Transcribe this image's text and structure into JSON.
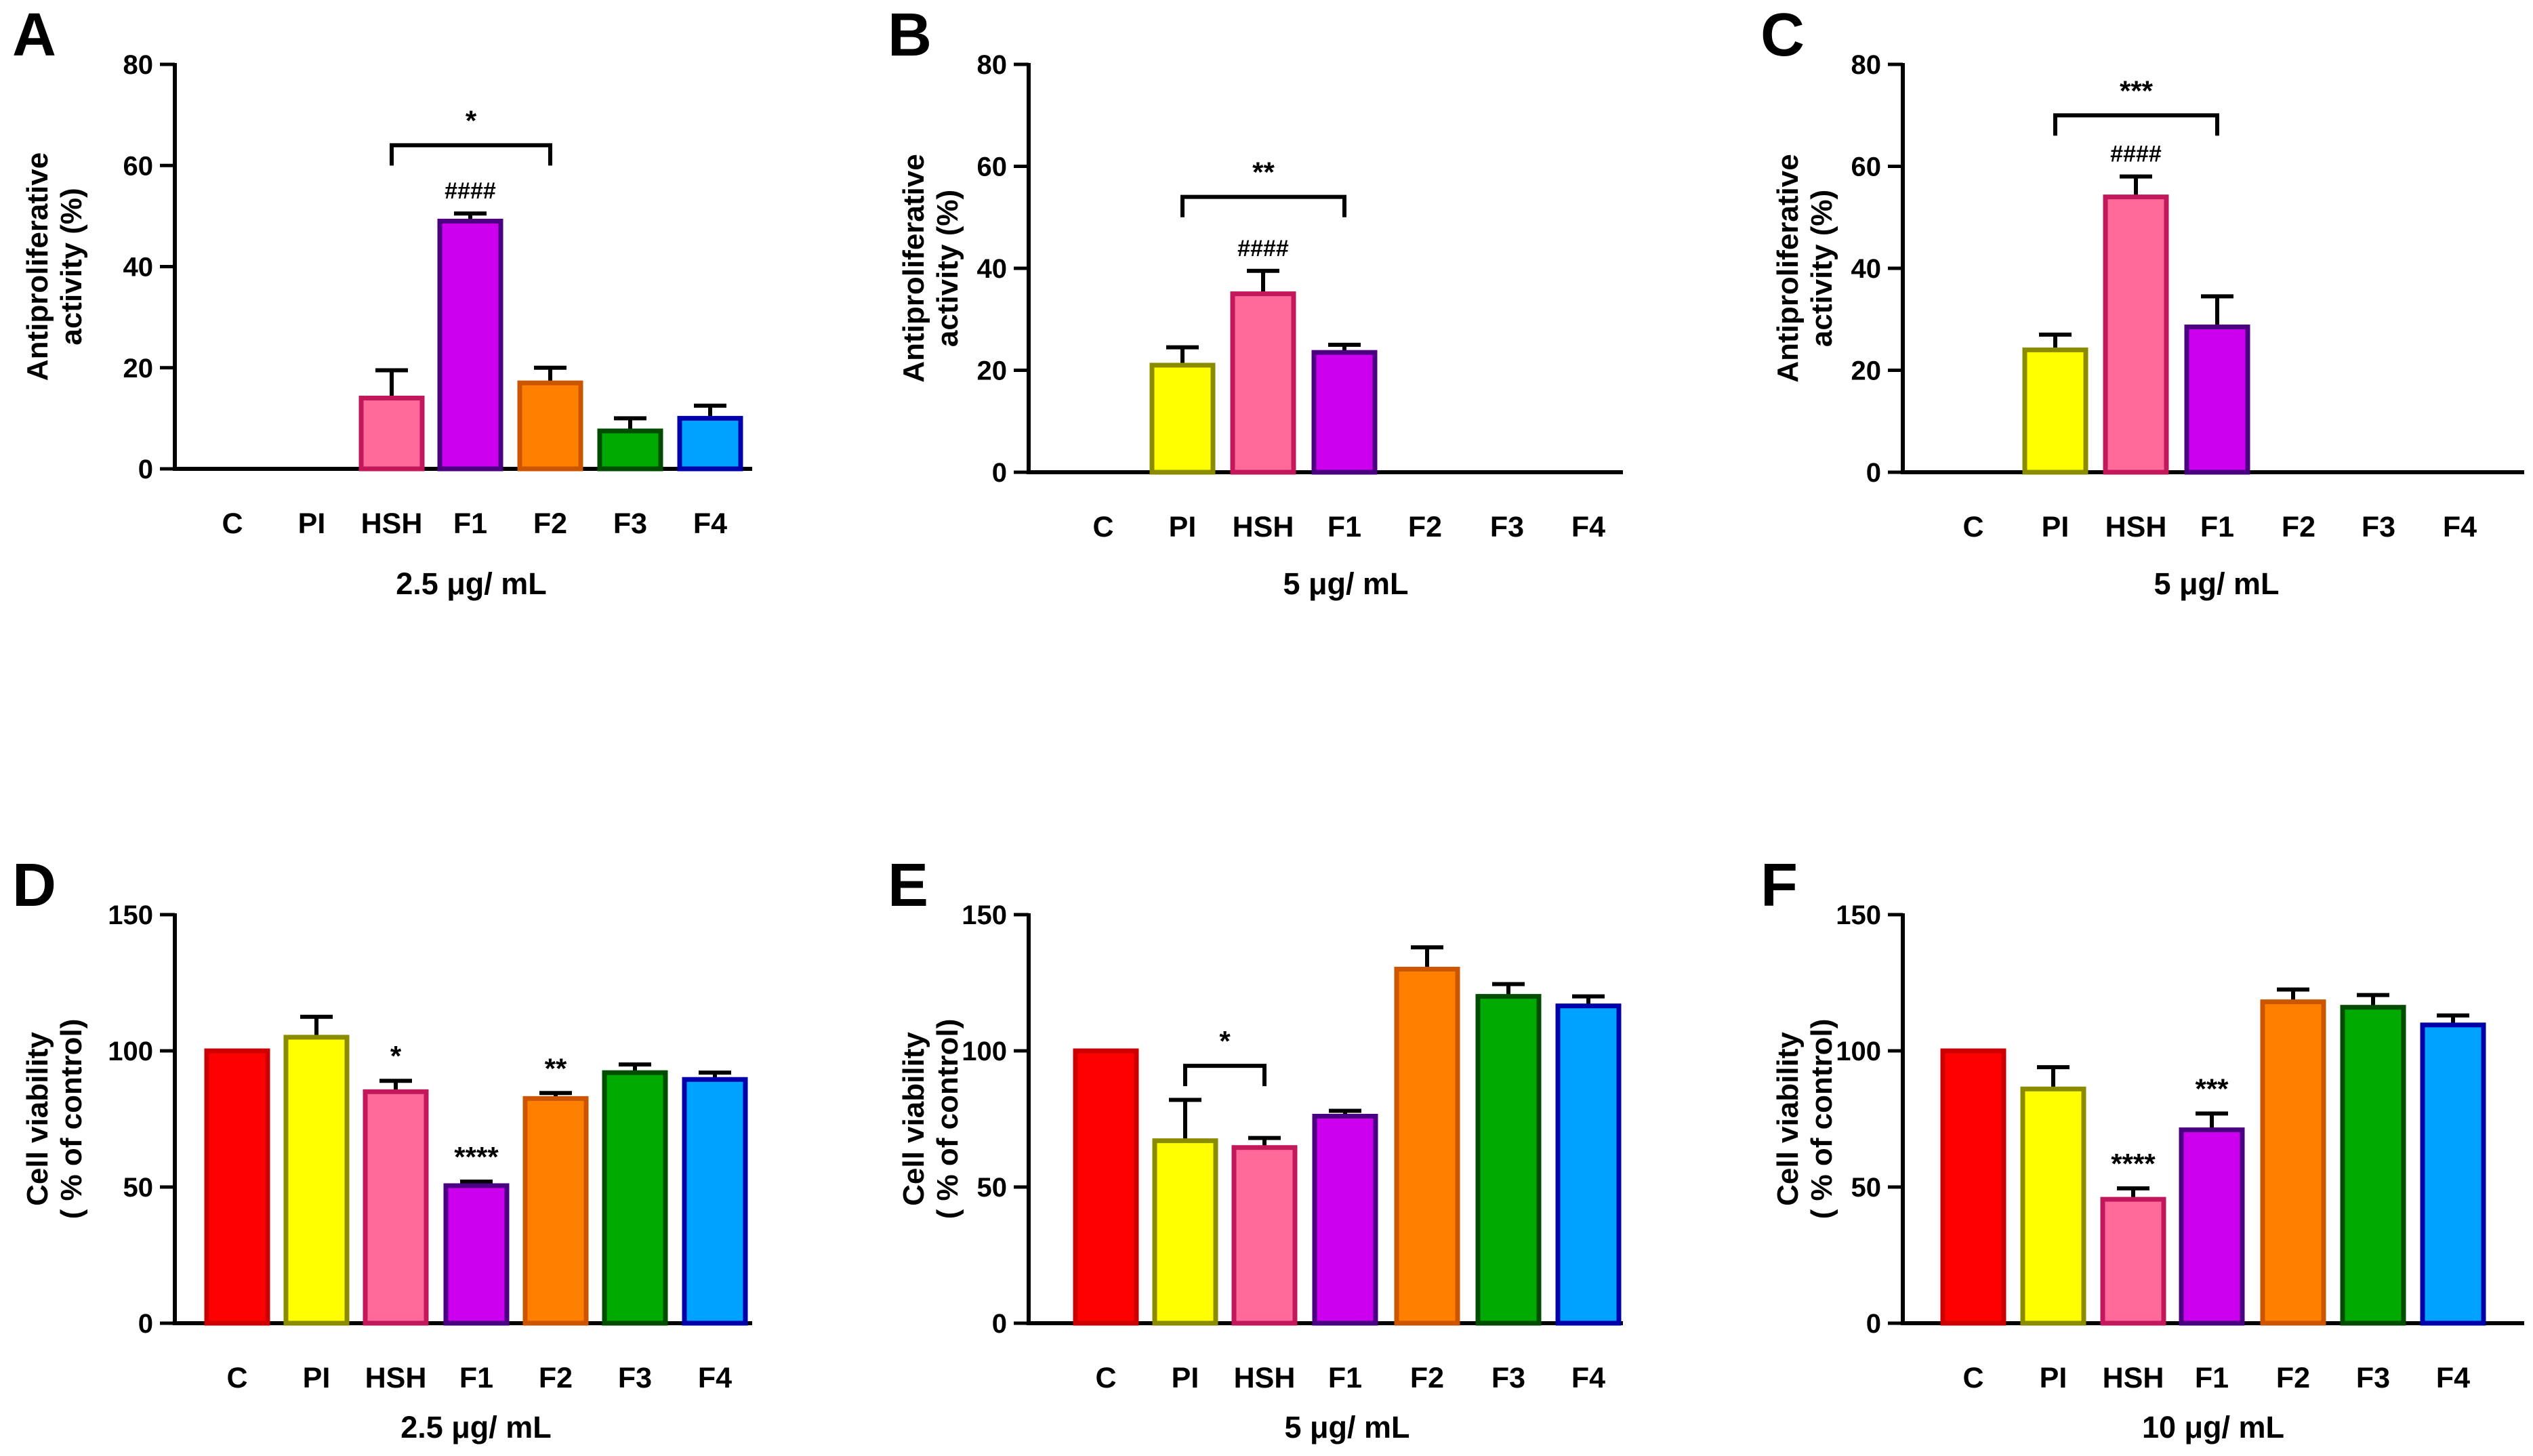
{
  "colors": {
    "axis": "#000000",
    "C": {
      "fill": "#ff0000",
      "stroke": "#cc0000"
    },
    "PI": {
      "fill": "#ffff00",
      "stroke": "#8b8b00"
    },
    "HSH": {
      "fill": "#ff6a9a",
      "stroke": "#c2185b"
    },
    "F1": {
      "fill": "#cc00ee",
      "stroke": "#4b0082"
    },
    "F2": {
      "fill": "#ff8000",
      "stroke": "#cc5500"
    },
    "F3": {
      "fill": "#00aa00",
      "stroke": "#004d00"
    },
    "F4": {
      "fill": "#00a2ff",
      "stroke": "#0000aa"
    }
  },
  "chart_data": [
    {
      "panel": "A",
      "type": "bar",
      "categories": [
        "C",
        "PI",
        "HSH",
        "F1",
        "F2",
        "F3",
        "F4"
      ],
      "values": [
        0,
        0,
        14,
        49,
        17,
        7.5,
        10
      ],
      "errors": [
        0,
        0,
        5.5,
        1.5,
        3,
        2.5,
        2.5
      ],
      "ylabel_lines": [
        "Antiproliferative",
        "activity (%)"
      ],
      "xlabel": "2.5 μg/ mL",
      "ylim": [
        0,
        80
      ],
      "yticks": [
        "0",
        "20",
        "40",
        "60",
        "80"
      ],
      "bar_labels": [
        null,
        null,
        null,
        "####",
        null,
        null,
        null
      ],
      "brackets": [
        {
          "from": "HSH",
          "to": "F2",
          "y": 64,
          "label": "*"
        }
      ],
      "grid": false
    },
    {
      "panel": "B",
      "type": "bar",
      "categories": [
        "C",
        "PI",
        "HSH",
        "F1",
        "F2",
        "F3",
        "F4"
      ],
      "values": [
        0,
        21,
        35,
        23.5,
        0,
        0,
        0
      ],
      "errors": [
        0,
        3.5,
        4.5,
        1.5,
        0,
        0,
        0
      ],
      "ylabel_lines": [
        "Antiproliferative",
        "activity (%)"
      ],
      "xlabel": "5 μg/ mL",
      "ylim": [
        0,
        80
      ],
      "yticks": [
        "0",
        "20",
        "40",
        "60",
        "80"
      ],
      "bar_labels": [
        null,
        null,
        "####",
        null,
        null,
        null,
        null
      ],
      "brackets": [
        {
          "from": "PI",
          "to": "F1",
          "y": 54,
          "label": "**"
        }
      ],
      "grid": false
    },
    {
      "panel": "C",
      "type": "bar",
      "categories": [
        "C",
        "PI",
        "HSH",
        "F1",
        "F2",
        "F3",
        "F4"
      ],
      "values": [
        0,
        24,
        54,
        28.5,
        0,
        0,
        0
      ],
      "errors": [
        0,
        3,
        4,
        6,
        0,
        0,
        0
      ],
      "ylabel_lines": [
        "Antiproliferative",
        "activity (%)"
      ],
      "xlabel": "5 μg/ mL",
      "ylim": [
        0,
        80
      ],
      "yticks": [
        "0",
        "20",
        "40",
        "60",
        "80"
      ],
      "bar_labels": [
        null,
        null,
        "####",
        null,
        null,
        null,
        null
      ],
      "brackets": [
        {
          "from": "PI",
          "to": "F1",
          "y": 70,
          "label": "***"
        }
      ],
      "grid": false
    },
    {
      "panel": "D",
      "type": "bar",
      "categories": [
        "C",
        "PI",
        "HSH",
        "F1",
        "F2",
        "F3",
        "F4"
      ],
      "values": [
        100,
        105,
        85,
        50.5,
        82.5,
        92,
        89.5
      ],
      "errors": [
        0,
        7.5,
        4,
        1.5,
        2,
        3,
        2.5
      ],
      "ylabel_lines": [
        "Cell viability",
        "( % of control)"
      ],
      "xlabel": "2.5 μg/ mL",
      "ylim": [
        0,
        150
      ],
      "yticks": [
        "0",
        "50",
        "100",
        "150"
      ],
      "bar_labels": [
        null,
        null,
        "*",
        "****",
        "**",
        null,
        null
      ],
      "brackets": [],
      "grid": false
    },
    {
      "panel": "E",
      "type": "bar",
      "categories": [
        "C",
        "PI",
        "HSH",
        "F1",
        "F2",
        "F3",
        "F4"
      ],
      "values": [
        100,
        67,
        64.5,
        76,
        130,
        120,
        116.5
      ],
      "errors": [
        0,
        15,
        3.5,
        2,
        8,
        4.5,
        3.5
      ],
      "ylabel_lines": [
        "Cell viability",
        "( % of control)"
      ],
      "xlabel": "5 μg/ mL",
      "ylim": [
        0,
        150
      ],
      "yticks": [
        "0",
        "50",
        "100",
        "150"
      ],
      "bar_labels": [
        null,
        null,
        null,
        null,
        null,
        null,
        null
      ],
      "brackets": [
        {
          "from": "PI",
          "to": "HSH",
          "y": 94.5,
          "label": "*"
        }
      ],
      "grid": false
    },
    {
      "panel": "F",
      "type": "bar",
      "categories": [
        "C",
        "PI",
        "HSH",
        "F1",
        "F2",
        "F3",
        "F4"
      ],
      "values": [
        100,
        86,
        45.5,
        71,
        118,
        116,
        109.5
      ],
      "errors": [
        0,
        8,
        4,
        6,
        4.5,
        4.5,
        3.5
      ],
      "ylabel_lines": [
        "Cell viability",
        "( % of control)"
      ],
      "xlabel": "10 μg/ mL",
      "ylim": [
        0,
        150
      ],
      "yticks": [
        "0",
        "50",
        "100",
        "150"
      ],
      "bar_labels": [
        null,
        null,
        "****",
        "***",
        null,
        null,
        null
      ],
      "brackets": [],
      "grid": false
    }
  ]
}
